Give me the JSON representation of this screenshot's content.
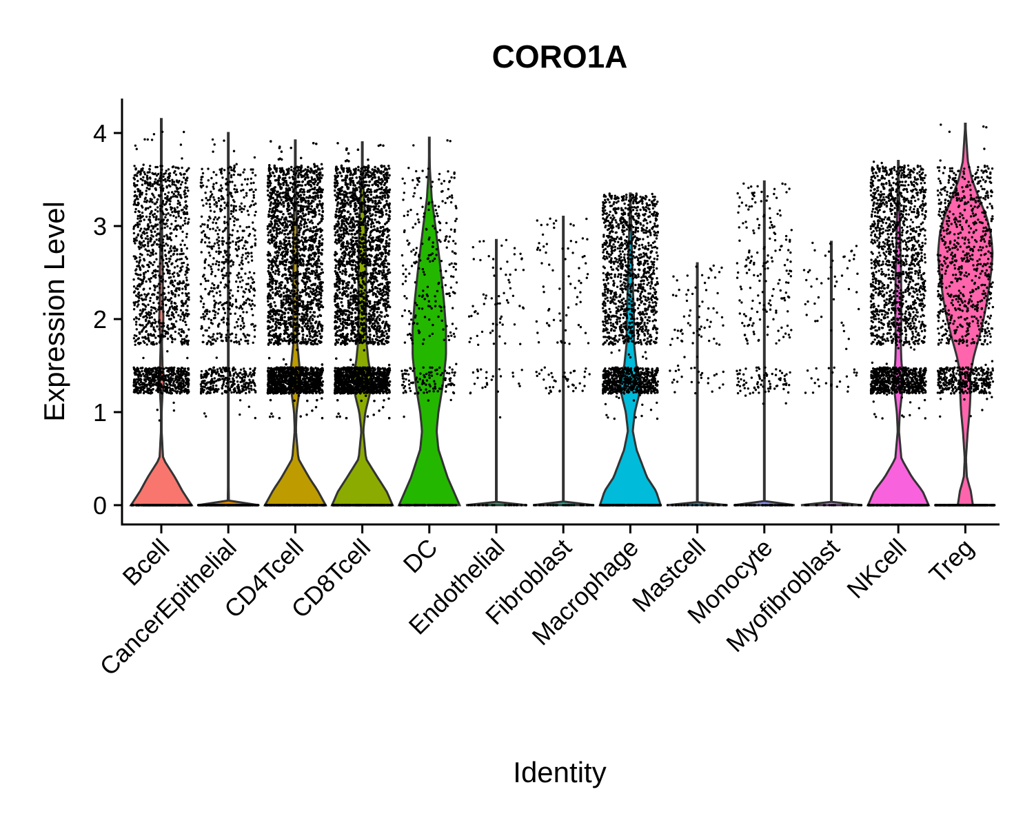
{
  "chart_data": {
    "type": "violin",
    "title": "CORO1A",
    "xlabel": "Identity",
    "ylabel": "Expression Level",
    "ylim": [
      -0.2,
      4.35
    ],
    "yticks": [
      0,
      1,
      2,
      3,
      4
    ],
    "ytick_labels": [
      "0",
      "1",
      "2",
      "3",
      "4"
    ],
    "grid": false,
    "legend": "none",
    "categories": [
      "Bcell",
      "CancerEpithelial",
      "CD4Tcell",
      "CD8Tcell",
      "DC",
      "Endothelial",
      "Fibroblast",
      "Macrophage",
      "Mastcell",
      "Monocyte",
      "Myofibroblast",
      "NKcell",
      "Treg"
    ],
    "colors": [
      "#F8766D",
      "#E18A00",
      "#BE9C00",
      "#8CAB00",
      "#24B700",
      "#00BE70",
      "#00C1AB",
      "#00BBDA",
      "#00ACFC",
      "#8B93FF",
      "#D575FE",
      "#F962DD",
      "#FF65AC"
    ],
    "series": [
      {
        "name": "Bcell",
        "max": 4.15,
        "points": 1600,
        "shape": [
          [
            0,
            1.0
          ],
          [
            0.15,
            0.7
          ],
          [
            0.3,
            0.45
          ],
          [
            0.5,
            0.06
          ],
          [
            0.8,
            0.01
          ],
          [
            1.0,
            0.01
          ],
          [
            1.2,
            0.04
          ],
          [
            1.35,
            0.1
          ],
          [
            1.5,
            0.04
          ],
          [
            1.75,
            0.02
          ],
          [
            2.0,
            0.07
          ],
          [
            2.2,
            0.05
          ],
          [
            2.5,
            0.05
          ],
          [
            2.8,
            0.03
          ],
          [
            3.2,
            0.02
          ],
          [
            3.6,
            0.0
          ],
          [
            4.15,
            0.0
          ]
        ]
      },
      {
        "name": "CancerEpithelial",
        "max": 4.0,
        "points": 900,
        "shape": [
          [
            0,
            1.0
          ],
          [
            0.01,
            0.02
          ],
          [
            0.5,
            0.0
          ],
          [
            1.3,
            0.005
          ],
          [
            2.0,
            0.005
          ],
          [
            2.6,
            0.005
          ],
          [
            4.0,
            0.0
          ]
        ]
      },
      {
        "name": "CD4Tcell",
        "max": 3.92,
        "points": 6000,
        "shape": [
          [
            0,
            1.0
          ],
          [
            0.15,
            0.75
          ],
          [
            0.3,
            0.45
          ],
          [
            0.5,
            0.1
          ],
          [
            0.8,
            0.02
          ],
          [
            1.0,
            0.04
          ],
          [
            1.2,
            0.12
          ],
          [
            1.38,
            0.17
          ],
          [
            1.55,
            0.12
          ],
          [
            1.75,
            0.06
          ],
          [
            2.0,
            0.07
          ],
          [
            2.5,
            0.07
          ],
          [
            3.0,
            0.06
          ],
          [
            3.3,
            0.02
          ],
          [
            3.92,
            0.0
          ]
        ]
      },
      {
        "name": "CD8Tcell",
        "max": 3.9,
        "points": 7000,
        "shape": [
          [
            0,
            1.0
          ],
          [
            0.15,
            0.8
          ],
          [
            0.3,
            0.5
          ],
          [
            0.5,
            0.12
          ],
          [
            0.8,
            0.03
          ],
          [
            1.0,
            0.1
          ],
          [
            1.2,
            0.25
          ],
          [
            1.38,
            0.3
          ],
          [
            1.55,
            0.2
          ],
          [
            1.75,
            0.14
          ],
          [
            2.0,
            0.12
          ],
          [
            2.5,
            0.13
          ],
          [
            3.0,
            0.1
          ],
          [
            3.3,
            0.06
          ],
          [
            3.5,
            0.02
          ],
          [
            3.9,
            0.0
          ]
        ]
      },
      {
        "name": "DC",
        "max": 3.95,
        "points": 350,
        "shape": [
          [
            0,
            1.0
          ],
          [
            0.3,
            0.6
          ],
          [
            0.6,
            0.3
          ],
          [
            0.8,
            0.24
          ],
          [
            1.0,
            0.3
          ],
          [
            1.3,
            0.45
          ],
          [
            1.6,
            0.55
          ],
          [
            1.9,
            0.55
          ],
          [
            2.2,
            0.48
          ],
          [
            2.6,
            0.35
          ],
          [
            3.0,
            0.2
          ],
          [
            3.3,
            0.08
          ],
          [
            3.6,
            0.02
          ],
          [
            3.95,
            0.0
          ]
        ]
      },
      {
        "name": "Endothelial",
        "max": 2.85,
        "points": 90,
        "shape": [
          [
            0,
            1.0
          ],
          [
            0.01,
            0.0
          ],
          [
            2.85,
            0.0
          ]
        ]
      },
      {
        "name": "Fibroblast",
        "max": 3.1,
        "points": 110,
        "shape": [
          [
            0,
            1.0
          ],
          [
            0.01,
            0.0
          ],
          [
            3.1,
            0.0
          ]
        ]
      },
      {
        "name": "Macrophage",
        "max": 3.35,
        "points": 1800,
        "shape": [
          [
            0,
            1.0
          ],
          [
            0.15,
            0.85
          ],
          [
            0.3,
            0.55
          ],
          [
            0.6,
            0.2
          ],
          [
            0.8,
            0.08
          ],
          [
            1.0,
            0.15
          ],
          [
            1.2,
            0.3
          ],
          [
            1.35,
            0.35
          ],
          [
            1.5,
            0.2
          ],
          [
            1.75,
            0.12
          ],
          [
            2.0,
            0.12
          ],
          [
            2.4,
            0.08
          ],
          [
            2.8,
            0.05
          ],
          [
            3.35,
            0.0
          ]
        ]
      },
      {
        "name": "Mastcell",
        "max": 2.6,
        "points": 90,
        "shape": [
          [
            0,
            1.0
          ],
          [
            0.01,
            0.0
          ],
          [
            2.6,
            0.0
          ]
        ]
      },
      {
        "name": "Monocyte",
        "max": 3.48,
        "points": 260,
        "shape": [
          [
            0,
            1.0
          ],
          [
            0.01,
            0.0
          ],
          [
            3.48,
            0.0
          ]
        ]
      },
      {
        "name": "Myofibroblast",
        "max": 2.83,
        "points": 70,
        "shape": [
          [
            0,
            1.0
          ],
          [
            0.01,
            0.0
          ],
          [
            2.83,
            0.0
          ]
        ]
      },
      {
        "name": "NKcell",
        "max": 3.7,
        "points": 2000,
        "shape": [
          [
            0,
            1.0
          ],
          [
            0.15,
            0.8
          ],
          [
            0.3,
            0.45
          ],
          [
            0.5,
            0.1
          ],
          [
            0.8,
            0.02
          ],
          [
            1.0,
            0.05
          ],
          [
            1.2,
            0.12
          ],
          [
            1.38,
            0.15
          ],
          [
            1.55,
            0.1
          ],
          [
            1.75,
            0.08
          ],
          [
            2.0,
            0.1
          ],
          [
            2.5,
            0.09
          ],
          [
            3.0,
            0.05
          ],
          [
            3.4,
            0.02
          ],
          [
            3.7,
            0.0
          ]
        ]
      },
      {
        "name": "Treg",
        "max": 4.1,
        "points": 1100,
        "shape": [
          [
            0,
            0.25
          ],
          [
            0.15,
            0.18
          ],
          [
            0.3,
            0.05
          ],
          [
            0.5,
            0.02
          ],
          [
            0.8,
            0.08
          ],
          [
            1.0,
            0.14
          ],
          [
            1.2,
            0.17
          ],
          [
            1.4,
            0.16
          ],
          [
            1.6,
            0.28
          ],
          [
            1.8,
            0.45
          ],
          [
            2.0,
            0.6
          ],
          [
            2.2,
            0.72
          ],
          [
            2.5,
            0.85
          ],
          [
            2.7,
            0.9
          ],
          [
            2.9,
            0.85
          ],
          [
            3.1,
            0.7
          ],
          [
            3.3,
            0.45
          ],
          [
            3.5,
            0.22
          ],
          [
            3.7,
            0.08
          ],
          [
            4.1,
            0.0
          ]
        ]
      }
    ]
  }
}
